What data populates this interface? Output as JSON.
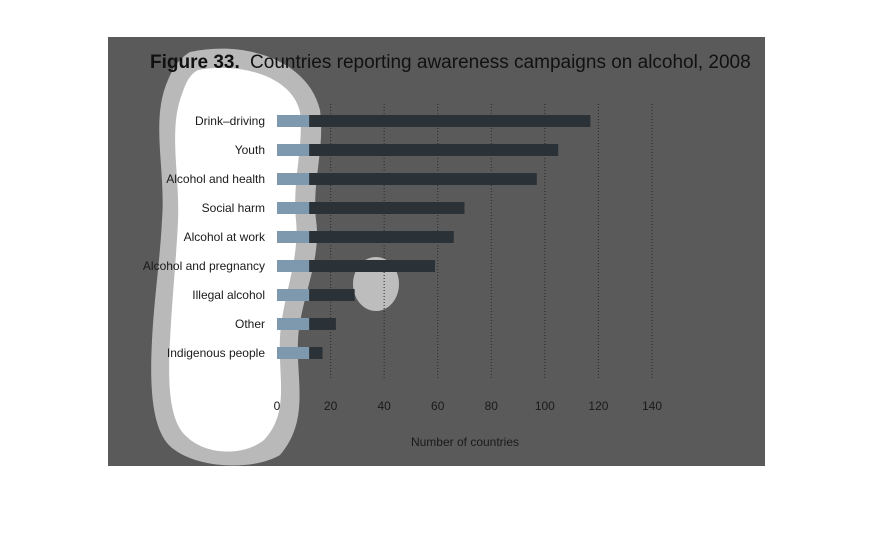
{
  "chart_data": {
    "type": "bar",
    "orientation": "horizontal",
    "title_prefix": "Figure 33.",
    "title": "Countries reporting awareness campaigns on alcohol, 2008",
    "xlabel": "Number of countries",
    "ylabel": "",
    "xlim": [
      0,
      140
    ],
    "xticks": [
      "0",
      "20",
      "40",
      "60",
      "80",
      "100",
      "120",
      "140"
    ],
    "grid": "vertical-dotted",
    "categories": [
      "Drink–driving",
      "Youth",
      "Alcohol and health",
      "Social harm",
      "Alcohol at work",
      "Alcohol and pregnancy",
      "Illegal alcohol",
      "Other",
      "Indigenous people"
    ],
    "values": [
      117,
      105,
      97,
      70,
      66,
      59,
      29,
      22,
      17
    ],
    "colors": {
      "background": "#5a5a5a",
      "bar": "#2b3237",
      "bar_highlight": "#7e98ad",
      "grid": "#2a2a2a",
      "text": "#1a1a1a"
    }
  }
}
